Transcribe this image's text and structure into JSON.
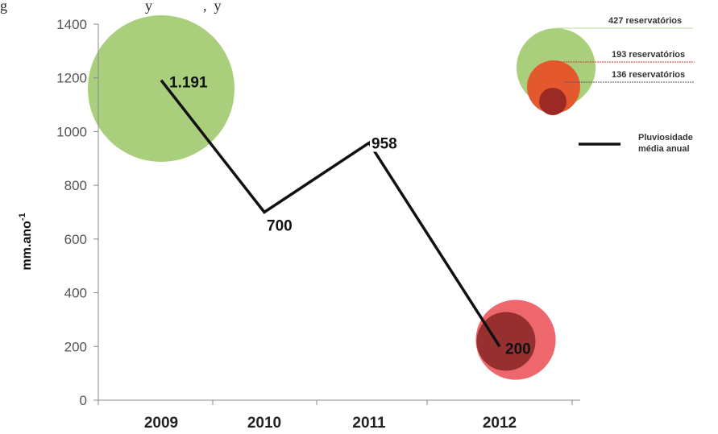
{
  "header_fragment": "g                                      y              ,  y",
  "chart_data": {
    "type": "line",
    "x": [
      "2009",
      "2010",
      "2011",
      "2012"
    ],
    "series": [
      {
        "name": "Pluviosidade média anual",
        "values": [
          1191,
          700,
          958,
          200
        ],
        "labels": [
          "1.191",
          "700",
          "958",
          "200"
        ]
      }
    ],
    "ylabel": "mm.ano",
    "ylabel_sup": "-1",
    "ylim": [
      0,
      1400
    ],
    "yticks": [
      0,
      200,
      400,
      600,
      800,
      1000,
      1200,
      1400
    ],
    "bubbles": [
      {
        "x": "2009",
        "reservatorios": 427,
        "color": "#a9cf7d"
      },
      {
        "x": "2012",
        "reservatorios": 193,
        "color": "#ec5a5f"
      },
      {
        "x": "2012",
        "reservatorios": 136,
        "color": "#8e2b2b"
      }
    ],
    "legend": {
      "position": "top-right",
      "bubble_entries": [
        "427 reservatórios",
        "193 reservatórios",
        "136 reservatórios"
      ],
      "line_entry_lines": [
        "Pluviosidade",
        "média anual"
      ]
    },
    "colors": {
      "line": "#111111",
      "green": "#a9cf7d",
      "red": "#ec5a5f",
      "dark_red": "#8e2b2b",
      "axis": "#888888"
    }
  }
}
